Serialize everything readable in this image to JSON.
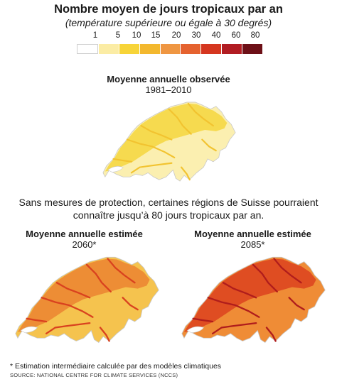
{
  "header": {
    "title": "Nombre moyen de jours tropicaux par an",
    "subtitle": "(température supérieure ou égale à 30 degrés)"
  },
  "legend": {
    "labels": [
      "1",
      "5",
      "10",
      "15",
      "20",
      "30",
      "40",
      "60",
      "80"
    ],
    "colors": [
      "#ffffff",
      "#fbeca4",
      "#f7d438",
      "#f3b82e",
      "#ef9642",
      "#e5622f",
      "#d5361f",
      "#b11c22",
      "#6d1017"
    ]
  },
  "maps": [
    {
      "title": "Moyenne annuelle observée",
      "period": "1981–2010",
      "fill": "#f6d84a",
      "base": "#fbefb0",
      "river": "#f2c330"
    },
    {
      "title": "Moyenne annuelle estimée",
      "period": "2060*",
      "fill": "#ec8a34",
      "base": "#f5c34e",
      "river": "#d9421f"
    },
    {
      "title": "Moyenne annuelle estimée",
      "period": "2085*",
      "fill": "#dd4a22",
      "base": "#ef8c36",
      "river": "#b01d1c"
    }
  ],
  "note": {
    "text": "Sans mesures de protection, certaines régions de Suisse pourraient connaître jusqu’à 80 jours tropicaux par an."
  },
  "footer": {
    "footnote": "* Estimation intermédiaire calculée par des modèles climatiques",
    "source": "SOURCE: NATIONAL CENTRE FOR CLIMATE SERVICES (NCCS)"
  }
}
